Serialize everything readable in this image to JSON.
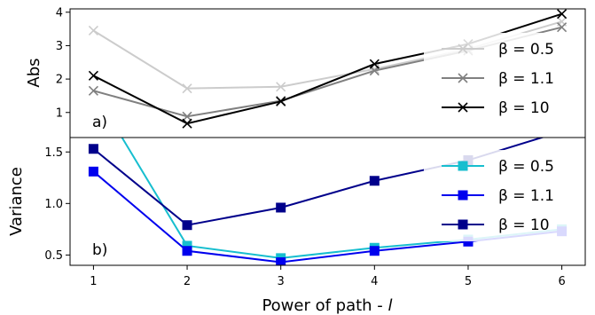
{
  "chart_data": [
    {
      "type": "line",
      "panel_label": "a)",
      "ylabel": "Abs",
      "x": [
        1,
        2,
        3,
        4,
        5,
        6
      ],
      "xlim": [
        0.75,
        6.25
      ],
      "ylim": [
        0.25,
        4.1
      ],
      "yticks": [
        1,
        2,
        3,
        4
      ],
      "marker": "x",
      "legend_position": "right",
      "series": [
        {
          "name": "β = 0.5",
          "legend_label": "β = 0.5",
          "color": "#cccccc",
          "values": [
            3.45,
            1.72,
            1.77,
            2.3,
            2.9,
            3.72
          ]
        },
        {
          "name": "β = 1.1",
          "legend_label": "β = 1.1",
          "color": "#808080",
          "values": [
            1.65,
            0.88,
            1.35,
            2.25,
            2.85,
            3.55
          ]
        },
        {
          "name": "β = 10",
          "legend_label": "β = 10",
          "color": "#000000",
          "values": [
            2.1,
            0.67,
            1.33,
            2.45,
            3.05,
            3.95
          ]
        }
      ]
    },
    {
      "type": "line",
      "panel_label": "b)",
      "ylabel": "Variance",
      "xlabel": "Power of path - l",
      "xlabel_text": "Power of path - ",
      "xlabel_var": "l",
      "x": [
        1,
        2,
        3,
        4,
        5,
        6
      ],
      "xlim": [
        0.75,
        6.25
      ],
      "ylim": [
        0.4,
        1.64
      ],
      "yticks": [
        0.5,
        1.0,
        1.5
      ],
      "ytick_labels": [
        "0.5",
        "1.0",
        "1.5"
      ],
      "xticks": [
        1,
        2,
        3,
        4,
        5,
        6
      ],
      "xtick_labels": [
        "1",
        "2",
        "3",
        "4",
        "5",
        "6"
      ],
      "marker": "square",
      "legend_position": "right",
      "series": [
        {
          "name": "β = 0.5",
          "legend_label": "β = 0.5",
          "color": "#17becf",
          "values": [
            2.1,
            0.59,
            0.47,
            0.57,
            0.65,
            0.75
          ]
        },
        {
          "name": "β = 1.1",
          "legend_label": "β = 1.1",
          "color": "#0000ee",
          "values": [
            1.31,
            0.54,
            0.43,
            0.54,
            0.63,
            0.73
          ]
        },
        {
          "name": "β = 10",
          "legend_label": "β = 10",
          "color": "#00008b",
          "values": [
            1.53,
            0.79,
            0.96,
            1.22,
            1.42,
            1.7
          ]
        }
      ]
    }
  ]
}
